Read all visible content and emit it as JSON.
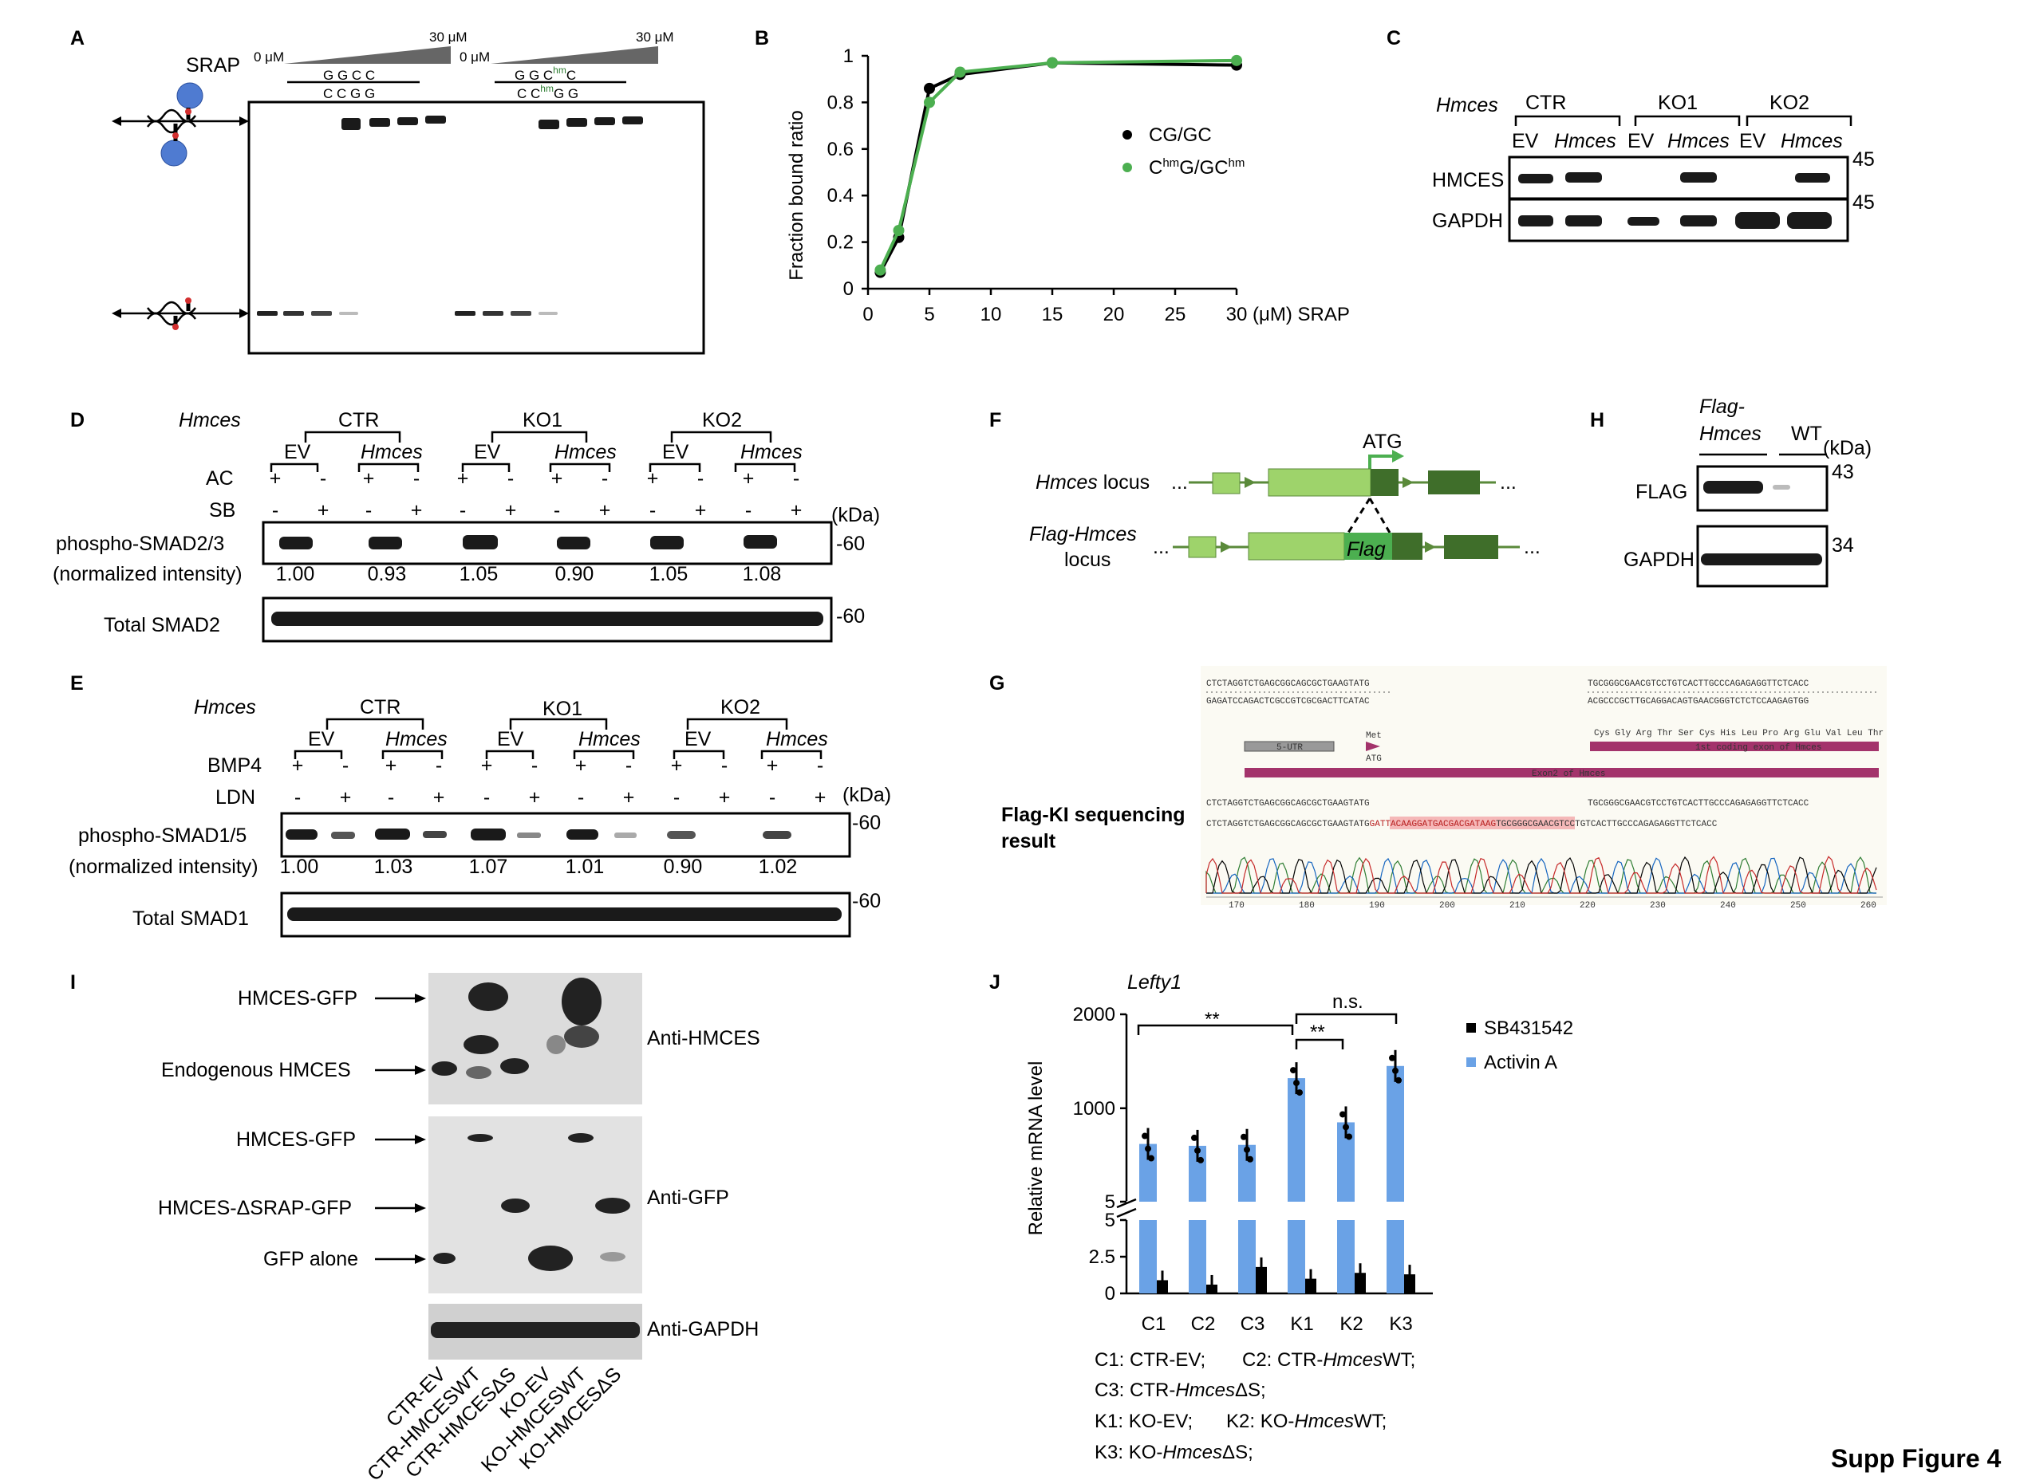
{
  "figure_label": "Supp Figure 4",
  "panelA": {
    "label": "A",
    "srap": "SRAP",
    "conc_low": "0 μM",
    "conc_high": "30 μM",
    "conc_low2": "0 μM",
    "conc_high2": "30 μM",
    "pair1_top": "G  G  C  C",
    "pair1_bot": "C  C  G  G",
    "pair2_top": "G  G  C",
    "pair2_sup": "hm",
    "pair2_top2": "C",
    "pair2_bot": "C  C",
    "pair2_bot_sup": "hm",
    "pair2_bot2": "G  G"
  },
  "panelB": {
    "label": "B",
    "ylabel": "Fraction bound ratio",
    "xlabel": "(μM) SRAP",
    "legend1": "CG/GC",
    "legend2a": "C",
    "legend2b": "hm",
    "legend2c": "G/GC",
    "legend2d": "hm",
    "yticks": [
      "0",
      "0.2",
      "0.4",
      "0.6",
      "0.8",
      "1"
    ],
    "xticks": [
      "0",
      "5",
      "10",
      "15",
      "20",
      "25",
      "30"
    ]
  },
  "chart_data": {
    "type": "line",
    "xlabel": "(μM) SRAP",
    "ylabel": "Fraction bound ratio",
    "xlim": [
      0,
      30
    ],
    "ylim": [
      0,
      1
    ],
    "series": [
      {
        "name": "CG/GC",
        "color": "#000000",
        "x": [
          1,
          2.5,
          5,
          7.5,
          15,
          30
        ],
        "y": [
          0.07,
          0.22,
          0.86,
          0.92,
          0.97,
          0.96
        ]
      },
      {
        "name": "ChmG/GChm",
        "color": "#4caf50",
        "x": [
          1,
          2.5,
          5,
          7.5,
          15,
          30
        ],
        "y": [
          0.08,
          0.25,
          0.8,
          0.93,
          0.97,
          0.98
        ]
      }
    ]
  },
  "panelC": {
    "label": "C",
    "gene": "Hmces",
    "g1": "CTR",
    "g2": "KO1",
    "g3": "KO2",
    "ev": "EV",
    "hm": "Hmces",
    "row1": "HMCES",
    "row2": "GAPDH",
    "m1": "45",
    "m2": "45"
  },
  "panelD": {
    "label": "D",
    "gene": "Hmces",
    "g1": "CTR",
    "g2": "KO1",
    "g3": "KO2",
    "ev": "EV",
    "hm": "Hmces",
    "ac": "AC",
    "sb": "SB",
    "plus": "+",
    "minus": "-",
    "kda": "(kDa)",
    "row1": "phospho-SMAD2/3",
    "norm": "(normalized intensity)",
    "row2": "Total SMAD2",
    "m": "-60",
    "m2": "-60",
    "vals": [
      "1.00",
      "0.93",
      "1.05",
      "0.90",
      "1.05",
      "1.08"
    ]
  },
  "panelE": {
    "label": "E",
    "gene": "Hmces",
    "g1": "CTR",
    "g2": "KO1",
    "g3": "KO2",
    "ev": "EV",
    "hm": "Hmces",
    "bmp": "BMP4",
    "ldn": "LDN",
    "plus": "+",
    "minus": "-",
    "kda": "(kDa)",
    "row1": "phospho-SMAD1/5",
    "norm": "(normalized intensity)",
    "row2": "Total SMAD1",
    "m": "-60",
    "m2": "-60",
    "vals": [
      "1.00",
      "1.03",
      "1.07",
      "1.01",
      "0.90",
      "1.02"
    ]
  },
  "panelF": {
    "label": "F",
    "atg": "ATG",
    "locus1a": "Hmces",
    "locus1b": " locus",
    "locus2a": "Flag-Hmces",
    "locus2b": "locus",
    "flag": "Flag",
    "dots": "..."
  },
  "panelG": {
    "label": "G",
    "title1": "Flag-KI sequencing",
    "title2": "result",
    "s1": "CTCTAGGTCTGAGCGGCAGCGCTGAAGTATG",
    "s2": "TGCGGGCGAACGTCCTGTCACTTGCCCAGAGAGGTTCTCACC",
    "s3": "GAGATCCAGACTCGCCGTCGCGACTTCATAC",
    "s4": "ACGCCCGCTTGCAGGACAGTGAACGGGTCTCTCCAAGAGTGG",
    "utr": "5-UTR",
    "met": "Met",
    "atg": "ATG",
    "coding": "1st coding exon of Hmces",
    "aa": "Cys  Gly  Arg  Thr  Ser  Cys  His  Leu  Pro  Arg  Glu  Val  Leu  Thr",
    "exon2": "Exon2 of Hmces",
    "s5": "CTCTAGGTCTGAGCGGCAGCGCTGAAGTATG",
    "s6": "TGCGGGCGAACGTCCTGTCACTTGCCCAGAGAGGTTCTCACC",
    "s7a": "CTCTAGGTCTGAGCGGCAGCGCTGAAGTATG",
    "s7b": "GATTACAAGGATGACGACGATAAG",
    "s7c": "TGCGGGCGAACGTCCTGTCACTTGCCCAGAGAGGTTCTCACC",
    "ticks": [
      "170",
      "180",
      "190",
      "200",
      "210",
      "220",
      "230",
      "240",
      "250",
      "260"
    ]
  },
  "panelH": {
    "label": "H",
    "c1a": "Flag-",
    "c1b": "Hmces",
    "c2": "WT",
    "kda": "(kDa)",
    "row1": "FLAG",
    "row2": "GAPDH",
    "m1": "43",
    "m2": "34"
  },
  "panelI": {
    "label": "I",
    "a1": "HMCES-GFP",
    "a2": "Endogenous HMCES",
    "a3": "HMCES-GFP",
    "a4": "HMCES-ΔSRAP-GFP",
    "a5": "GFP alone",
    "r1": "Anti-HMCES",
    "r2": "Anti-GFP",
    "r3": "Anti-GAPDH",
    "lanes": [
      "CTR-EV",
      "CTR-HMCESWT",
      "CTR-HMCESΔS",
      "KO-EV",
      "KO-HMCESWT",
      "KO-HMCESΔS"
    ]
  },
  "panelJ": {
    "label": "J",
    "gene": "Lefty1",
    "ylabel": "Relative mRNA level",
    "y_top": [
      "2000",
      "1000",
      "5"
    ],
    "y_bot": [
      "5",
      "2.5",
      "0"
    ],
    "cats": [
      "C1",
      "C2",
      "C3",
      "K1",
      "K2",
      "K3"
    ],
    "sig1": "**",
    "sig2": "**",
    "sig3": "n.s.",
    "leg1": "SB431542",
    "leg2": "Activin A",
    "k1": "C1: CTR-EV;",
    "k2a": "C2: CTR-",
    "k2b": "Hmces",
    "k2c": "WT;",
    "k3a": "C3: CTR-",
    "k3b": "Hmces",
    "k3c": "ΔS;",
    "k4": "K1: KO-EV;",
    "k5a": "K2: KO-",
    "k5b": "Hmces",
    "k5c": "WT;",
    "k6a": "K3: KO-",
    "k6b": "Hmces",
    "k6c": "ΔS;",
    "activin": [
      620,
      600,
      610,
      1320,
      850,
      1450
    ],
    "sb": [
      0.9,
      0.6,
      1.8,
      1.0,
      1.4,
      1.3
    ],
    "colors": {
      "activin": "#6aa2e6",
      "sb": "#000000"
    }
  }
}
